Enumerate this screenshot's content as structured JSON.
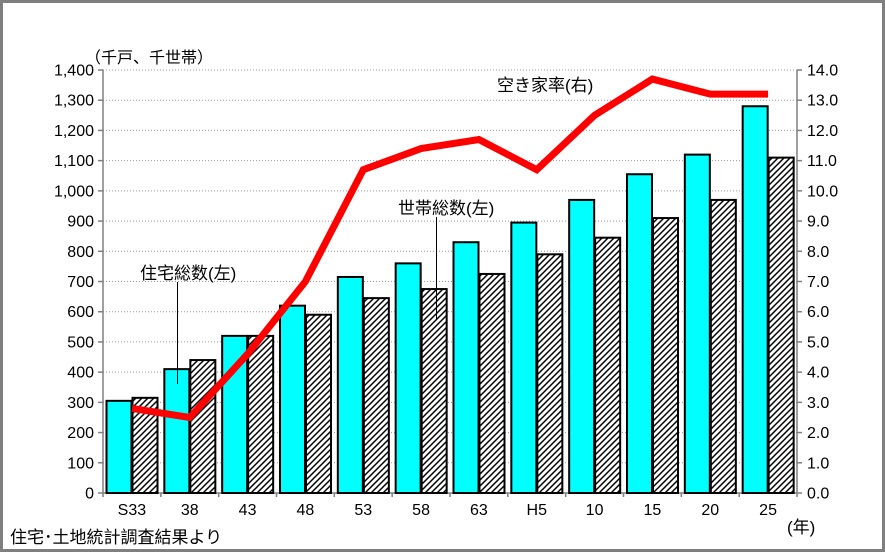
{
  "chart_data": {
    "type": "bar+line",
    "title": "",
    "unit_label": "（千戸、千世帯）",
    "x_axis_unit": "(年)",
    "footer": "住宅･土地統計調査結果より",
    "grid": "dotted-horizontal",
    "legend_position": "none (labels annotated on chart)",
    "categories": [
      "S33",
      "38",
      "43",
      "48",
      "53",
      "58",
      "63",
      "H5",
      "10",
      "15",
      "20",
      "25"
    ],
    "series": [
      {
        "name": "住宅総数(左)",
        "type": "bar",
        "axis": "left",
        "color": "#00ffff",
        "values": [
          305,
          410,
          520,
          620,
          715,
          760,
          830,
          895,
          970,
          1055,
          1120,
          1280
        ]
      },
      {
        "name": "世帯総数(左)",
        "type": "bar",
        "axis": "left",
        "color": "diagonal-hatch-black-on-white",
        "values": [
          315,
          440,
          520,
          590,
          645,
          675,
          725,
          790,
          845,
          910,
          970,
          1110
        ]
      },
      {
        "name": "空き家率(右)",
        "type": "line",
        "axis": "right",
        "color": "#ff0000",
        "values": [
          2.8,
          2.5,
          4.6,
          7.0,
          10.7,
          11.4,
          11.7,
          10.7,
          12.5,
          13.7,
          13.2,
          13.2
        ]
      }
    ],
    "left_axis": {
      "min": 0,
      "max": 1400,
      "step": 100,
      "tick_labels": [
        "0",
        "100",
        "200",
        "300",
        "400",
        "500",
        "600",
        "700",
        "800",
        "900",
        "1,000",
        "1,100",
        "1,200",
        "1,300",
        "1,400"
      ]
    },
    "right_axis": {
      "min": 0,
      "max": 14,
      "step": 1,
      "tick_labels": [
        "0.0",
        "1.0",
        "2.0",
        "3.0",
        "4.0",
        "5.0",
        "6.0",
        "7.0",
        "8.0",
        "9.0",
        "10.0",
        "11.0",
        "12.0",
        "13.0",
        "14.0"
      ]
    }
  }
}
